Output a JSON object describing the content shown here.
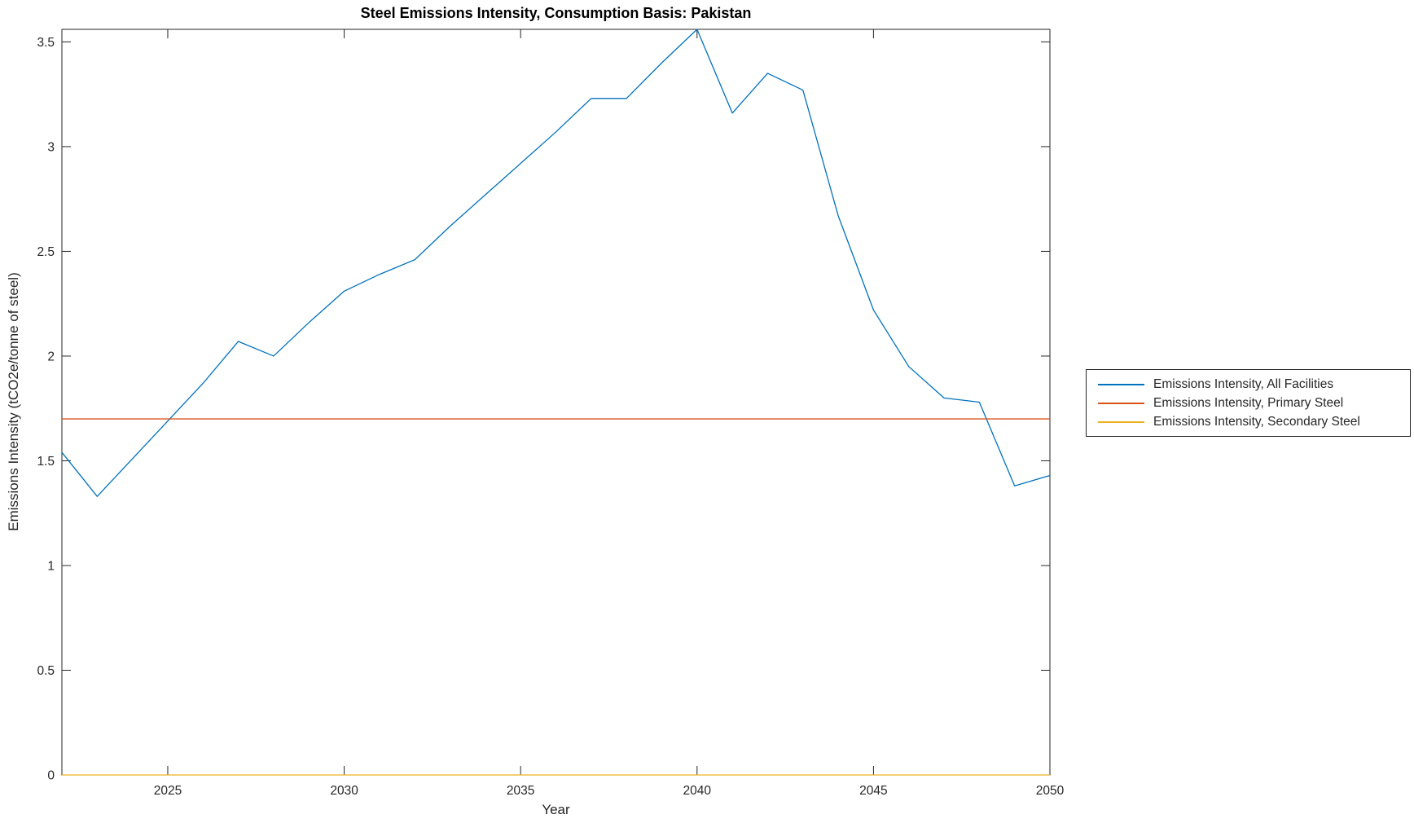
{
  "chart_data": {
    "type": "line",
    "title": "Steel Emissions Intensity, Consumption Basis: Pakistan",
    "xlabel": "Year",
    "ylabel": "Emissions Intensity (tCO2e/tonne of steel)",
    "xlim": [
      2022,
      2050
    ],
    "ylim": [
      0,
      3.56
    ],
    "x_ticks": [
      2025,
      2030,
      2035,
      2040,
      2045,
      2050
    ],
    "y_ticks": [
      0,
      0.5,
      1,
      1.5,
      2,
      2.5,
      3,
      3.5
    ],
    "grid": false,
    "legend_position": "outside-right",
    "axis_color": "#262626",
    "x": [
      2022,
      2023,
      2024,
      2025,
      2026,
      2027,
      2028,
      2029,
      2030,
      2031,
      2032,
      2033,
      2034,
      2035,
      2036,
      2037,
      2038,
      2039,
      2040,
      2041,
      2042,
      2043,
      2044,
      2045,
      2046,
      2047,
      2048,
      2049,
      2050
    ],
    "series": [
      {
        "name": "Emissions Intensity, All Facilities",
        "color": "#0072BD",
        "values": [
          1.54,
          1.33,
          1.51,
          1.69,
          1.87,
          2.07,
          2.0,
          2.16,
          2.31,
          2.39,
          2.46,
          2.62,
          2.77,
          2.92,
          3.07,
          3.23,
          3.23,
          3.4,
          3.56,
          3.16,
          3.35,
          3.27,
          2.67,
          2.22,
          1.95,
          1.8,
          1.78,
          1.38,
          1.43
        ]
      },
      {
        "name": "Emissions Intensity, Primary Steel",
        "color": "#D95319",
        "values": [
          1.7,
          1.7,
          1.7,
          1.7,
          1.7,
          1.7,
          1.7,
          1.7,
          1.7,
          1.7,
          1.7,
          1.7,
          1.7,
          1.7,
          1.7,
          1.7,
          1.7,
          1.7,
          1.7,
          1.7,
          1.7,
          1.7,
          1.7,
          1.7,
          1.7,
          1.7,
          1.7,
          1.7,
          1.7
        ]
      },
      {
        "name": "Emissions Intensity, Secondary Steel",
        "color": "#EDB120",
        "values": [
          0,
          0,
          0,
          0,
          0,
          0,
          0,
          0,
          0,
          0,
          0,
          0,
          0,
          0,
          0,
          0,
          0,
          0,
          0,
          0,
          0,
          0,
          0,
          0,
          0,
          0,
          0,
          0,
          0
        ]
      }
    ]
  }
}
